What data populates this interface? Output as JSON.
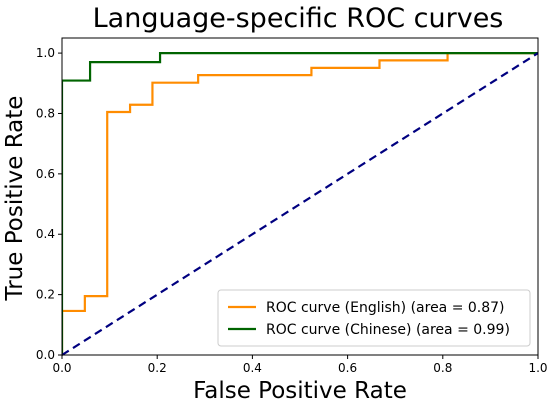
{
  "chart_data": {
    "type": "line",
    "title": "Language-specific ROC curves",
    "xlabel": "False Positive Rate",
    "ylabel": "True Positive Rate",
    "xlim": [
      0.0,
      1.0
    ],
    "ylim": [
      0.0,
      1.05
    ],
    "xticks": [
      "0.0",
      "0.2",
      "0.4",
      "0.6",
      "0.8",
      "1.0"
    ],
    "yticks": [
      "0.0",
      "0.2",
      "0.4",
      "0.6",
      "0.8",
      "1.0"
    ],
    "grid": false,
    "legend_position": "lower right",
    "series": [
      {
        "name": "ROC curve (English) (area = 0.87)",
        "color": "#ff8c00",
        "style": "step",
        "x": [
          0.0,
          0.0,
          0.048,
          0.048,
          0.095,
          0.095,
          0.143,
          0.143,
          0.19,
          0.19,
          0.286,
          0.286,
          0.524,
          0.524,
          0.667,
          0.667,
          0.81,
          0.81,
          1.0
        ],
        "y": [
          0.0,
          0.146,
          0.146,
          0.195,
          0.195,
          0.805,
          0.805,
          0.829,
          0.829,
          0.902,
          0.902,
          0.927,
          0.927,
          0.951,
          0.951,
          0.976,
          0.976,
          1.0,
          1.0
        ]
      },
      {
        "name": "ROC curve (Chinese) (area = 0.99)",
        "color": "#006400",
        "style": "step",
        "x": [
          0.0,
          0.0,
          0.059,
          0.059,
          0.206,
          0.206,
          1.0
        ],
        "y": [
          0.0,
          0.909,
          0.909,
          0.97,
          0.97,
          1.0,
          1.0
        ]
      },
      {
        "name": "",
        "color": "#000080",
        "style": "dashed",
        "x": [
          0.0,
          1.0
        ],
        "y": [
          0.0,
          1.0
        ]
      }
    ]
  }
}
